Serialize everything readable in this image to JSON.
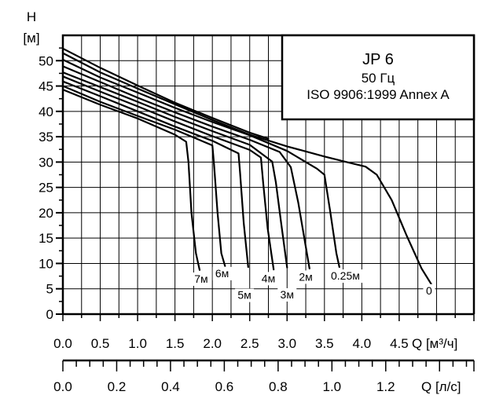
{
  "chart_data": {
    "type": "line",
    "title_box": {
      "model": "JP 6",
      "frequency": "50 Гц",
      "standard": "ISO 9906:1999 Annex A"
    },
    "y_axis": {
      "symbol": "H",
      "unit": "[м]",
      "range": [
        0,
        55
      ],
      "ticks": [
        "0",
        "5",
        "10",
        "15",
        "20",
        "25",
        "30",
        "35",
        "40",
        "45",
        "50"
      ]
    },
    "x_axis_primary": {
      "label": "Q [м³/ч]",
      "range": [
        0,
        5.5
      ],
      "tick_values": [
        0,
        0.5,
        1.0,
        1.5,
        2.0,
        2.5,
        3.0,
        3.5,
        4.0,
        4.5
      ],
      "tick_labels": [
        "0.0",
        "0.5",
        "1.0",
        "1.5",
        "2.0",
        "2.5",
        "3.0",
        "3.5",
        "4.0",
        "4.5"
      ]
    },
    "x_axis_secondary": {
      "label": "Q [л/с]",
      "tick_values": [
        0,
        0.2,
        0.4,
        0.6,
        0.8,
        1.0,
        1.2
      ],
      "tick_labels": [
        "0.0",
        "0.2",
        "0.4",
        "0.6",
        "0.8",
        "1.0",
        "1.2"
      ]
    },
    "grid": true,
    "series": [
      {
        "name": "7м",
        "label_at": [
          1.85,
          6.2
        ],
        "points": [
          [
            0,
            44.3
          ],
          [
            0.5,
            41.3
          ],
          [
            1.0,
            38.6
          ],
          [
            1.5,
            35.4
          ],
          [
            1.65,
            34.0
          ],
          [
            1.68,
            30.0
          ],
          [
            1.72,
            20.0
          ],
          [
            1.78,
            12.0
          ],
          [
            1.83,
            8.7
          ]
        ]
      },
      {
        "name": "6м",
        "label_at": [
          2.13,
          7.3
        ],
        "points": [
          [
            0,
            45.0
          ],
          [
            0.5,
            41.9
          ],
          [
            1.0,
            39.1
          ],
          [
            1.5,
            36.4
          ],
          [
            2.0,
            33.3
          ],
          [
            2.02,
            30.0
          ],
          [
            2.07,
            20.0
          ],
          [
            2.12,
            12.0
          ],
          [
            2.17,
            9.5
          ]
        ]
      },
      {
        "name": "5м",
        "label_at": [
          2.43,
          3.0
        ],
        "points": [
          [
            0,
            45.9
          ],
          [
            0.5,
            43.0
          ],
          [
            1.0,
            40.0
          ],
          [
            1.5,
            37.0
          ],
          [
            2.0,
            34.2
          ],
          [
            2.35,
            31.7
          ],
          [
            2.37,
            28.0
          ],
          [
            2.42,
            18.0
          ],
          [
            2.48,
            9.3
          ]
        ]
      },
      {
        "name": "4м",
        "label_at": [
          2.75,
          6.3
        ],
        "points": [
          [
            0,
            46.9
          ],
          [
            0.5,
            43.9
          ],
          [
            1.0,
            41.0
          ],
          [
            1.5,
            38.0
          ],
          [
            2.0,
            35.1
          ],
          [
            2.5,
            32.4
          ],
          [
            2.65,
            30.9
          ],
          [
            2.68,
            26.0
          ],
          [
            2.74,
            17.0
          ],
          [
            2.82,
            8.8
          ]
        ]
      },
      {
        "name": "3м",
        "label_at": [
          3.0,
          3.1
        ],
        "points": [
          [
            0,
            47.7
          ],
          [
            0.5,
            44.8
          ],
          [
            1.0,
            41.9
          ],
          [
            1.5,
            38.9
          ],
          [
            2.0,
            36.1
          ],
          [
            2.5,
            33.4
          ],
          [
            2.8,
            30.1
          ],
          [
            2.85,
            26.0
          ],
          [
            2.92,
            18.0
          ],
          [
            3.0,
            9.2
          ]
        ]
      },
      {
        "name": "2м",
        "label_at": [
          3.25,
          6.6
        ],
        "points": [
          [
            0,
            48.9
          ],
          [
            0.5,
            45.8
          ],
          [
            1.0,
            42.7
          ],
          [
            1.5,
            39.8
          ],
          [
            2.0,
            37.0
          ],
          [
            2.5,
            34.4
          ],
          [
            2.9,
            32.0
          ],
          [
            3.05,
            29.0
          ],
          [
            3.15,
            22.0
          ],
          [
            3.3,
            9.0
          ]
        ]
      },
      {
        "name": "0.25м",
        "label_at": [
          3.78,
          6.8
        ],
        "points": [
          [
            0,
            50.2
          ],
          [
            0.5,
            46.7
          ],
          [
            1.0,
            43.7
          ],
          [
            1.5,
            40.7
          ],
          [
            2.0,
            37.9
          ],
          [
            2.5,
            35.3
          ],
          [
            3.0,
            32.2
          ],
          [
            3.4,
            28.7
          ],
          [
            3.5,
            27.5
          ],
          [
            3.58,
            20.0
          ],
          [
            3.66,
            12.0
          ],
          [
            3.7,
            9.3
          ]
        ]
      },
      {
        "name": "0",
        "label_at": [
          4.9,
          3.9
        ],
        "points": [
          [
            0,
            51.5
          ],
          [
            0.5,
            47.7
          ],
          [
            1.0,
            44.5
          ],
          [
            1.5,
            41.4
          ],
          [
            2.0,
            38.3
          ],
          [
            2.5,
            35.4
          ],
          [
            3.0,
            33.1
          ],
          [
            3.5,
            31.1
          ],
          [
            3.8,
            30.0
          ],
          [
            4.05,
            29.1
          ],
          [
            4.2,
            27.5
          ],
          [
            4.4,
            22.5
          ],
          [
            4.6,
            15.5
          ],
          [
            4.8,
            9.0
          ],
          [
            4.93,
            5.9
          ]
        ]
      },
      {
        "name": "",
        "points": [
          [
            0,
            52.4
          ],
          [
            0.5,
            48.6
          ],
          [
            1.0,
            45.1
          ],
          [
            1.5,
            41.7
          ],
          [
            2.0,
            38.7
          ],
          [
            2.5,
            35.8
          ],
          [
            2.75,
            34.6
          ]
        ]
      }
    ]
  }
}
